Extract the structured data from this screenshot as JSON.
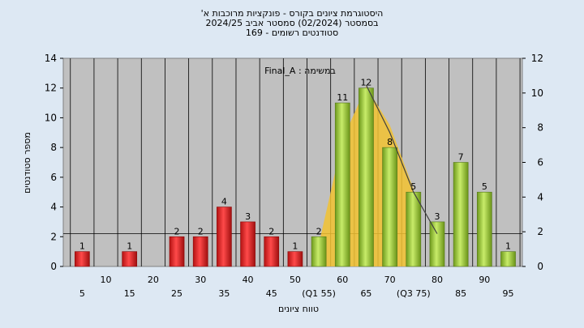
{
  "header": {
    "line1": "היסטוגרמת ציונים בקורס - פונקציות מרוכבות א'",
    "line2": "בסמסטר  (02/2024)  סמסטר אביב 2024/25",
    "line3": "סטודנטים רשומים - 169"
  },
  "chart_data": {
    "type": "bar",
    "annotation": "במשימה : Final_A",
    "xlabel": "טווח ציונים",
    "ylabel": "מספר סטודנטים",
    "ylim_left": [
      0,
      14
    ],
    "yticks_left": [
      0,
      2,
      4,
      6,
      8,
      10,
      12,
      14
    ],
    "ylim_right": [
      0,
      12
    ],
    "yticks_right": [
      0,
      2,
      4,
      6,
      8,
      10,
      12
    ],
    "x_tick_labels": [
      {
        "label": "5",
        "x": 5,
        "row": "low"
      },
      {
        "label": "10",
        "x": 10,
        "row": "high"
      },
      {
        "label": "15",
        "x": 15,
        "row": "low"
      },
      {
        "label": "20",
        "x": 20,
        "row": "high"
      },
      {
        "label": "25",
        "x": 25,
        "row": "low"
      },
      {
        "label": "30",
        "x": 30,
        "row": "high"
      },
      {
        "label": "35",
        "x": 35,
        "row": "low"
      },
      {
        "label": "40",
        "x": 40,
        "row": "high"
      },
      {
        "label": "45",
        "x": 45,
        "row": "low"
      },
      {
        "label": "50",
        "x": 50,
        "row": "high"
      },
      {
        "label": "(Q1 55)",
        "x": 55,
        "row": "low"
      },
      {
        "label": "60",
        "x": 60,
        "row": "high"
      },
      {
        "label": "65",
        "x": 65,
        "row": "low"
      },
      {
        "label": "70",
        "x": 70,
        "row": "high"
      },
      {
        "label": "(Q3 75)",
        "x": 75,
        "row": "low"
      },
      {
        "label": "80",
        "x": 80,
        "row": "high"
      },
      {
        "label": "85",
        "x": 85,
        "row": "low"
      },
      {
        "label": "90",
        "x": 90,
        "row": "high"
      },
      {
        "label": "95",
        "x": 95,
        "row": "low"
      }
    ],
    "bars": [
      {
        "x": 5,
        "value": 1,
        "color": "red"
      },
      {
        "x": 15,
        "value": 1,
        "color": "red"
      },
      {
        "x": 25,
        "value": 2,
        "color": "red"
      },
      {
        "x": 30,
        "value": 2,
        "color": "red"
      },
      {
        "x": 35,
        "value": 4,
        "color": "red"
      },
      {
        "x": 40,
        "value": 3,
        "color": "red"
      },
      {
        "x": 45,
        "value": 2,
        "color": "red"
      },
      {
        "x": 50,
        "value": 1,
        "color": "red"
      },
      {
        "x": 55,
        "value": 2,
        "color": "green"
      },
      {
        "x": 60,
        "value": 11,
        "color": "green"
      },
      {
        "x": 65,
        "value": 12,
        "color": "green"
      },
      {
        "x": 70,
        "value": 8,
        "color": "green"
      },
      {
        "x": 75,
        "value": 5,
        "color": "green"
      },
      {
        "x": 80,
        "value": 3,
        "color": "green"
      },
      {
        "x": 85,
        "value": 7,
        "color": "green"
      },
      {
        "x": 90,
        "value": 5,
        "color": "green"
      },
      {
        "x": 95,
        "value": 1,
        "color": "green"
      }
    ],
    "iqr_area": {
      "x": [
        55,
        60,
        65,
        70,
        75
      ],
      "y": [
        1.5,
        8.5,
        12.1,
        9.5,
        5.2
      ],
      "color": "#f2c230"
    },
    "trend_line": {
      "x": [
        65,
        70,
        75,
        80
      ],
      "y": [
        12.2,
        9.0,
        5.0,
        2.2
      ],
      "color": "#404040"
    },
    "colors": {
      "plot_bg": "#c0c0c0",
      "page_bg": "#dde8f3",
      "red_bar": "#e02020",
      "green_bar": "#9acd32",
      "grid": "#000000"
    },
    "grid": true
  }
}
